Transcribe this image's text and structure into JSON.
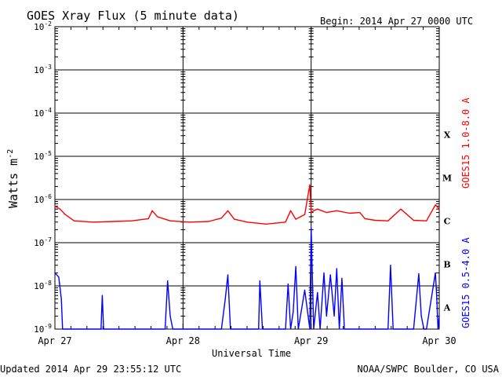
{
  "header": {
    "title": "GOES Xray Flux (5 minute data)",
    "begin": "Begin:  2014 Apr 27 0000 UTC"
  },
  "footer": {
    "updated": "Updated 2014 Apr 29 23:55:12 UTC",
    "credit": "NOAA/SWPC Boulder, CO USA"
  },
  "chart_data": {
    "type": "line",
    "title": "GOES Xray Flux (5 minute data)",
    "xlabel": "Universal Time",
    "ylabel": "Watts m",
    "ylabel_sup": "-2",
    "y_scale": "log",
    "ylim": [
      1e-09,
      0.01
    ],
    "xlim_days": [
      0,
      3
    ],
    "x_tick_labels": [
      "Apr 27",
      "Apr 28",
      "Apr 29",
      "Apr 30"
    ],
    "y_ticks": [
      {
        "base": "10",
        "exp": "-2"
      },
      {
        "base": "10",
        "exp": "-3"
      },
      {
        "base": "10",
        "exp": "-4"
      },
      {
        "base": "10",
        "exp": "-5"
      },
      {
        "base": "10",
        "exp": "-6"
      },
      {
        "base": "10",
        "exp": "-7"
      },
      {
        "base": "10",
        "exp": "-8"
      },
      {
        "base": "10",
        "exp": "-9"
      }
    ],
    "flare_classes": [
      "X",
      "M",
      "C",
      "B",
      "A"
    ],
    "grid": true,
    "series": [
      {
        "name": "GOES15 1.0-8.0 A",
        "color": "#ff0000",
        "x": [
          0.0,
          0.04,
          0.08,
          0.15,
          0.3,
          0.45,
          0.6,
          0.73,
          0.76,
          0.8,
          0.9,
          1.05,
          1.2,
          1.3,
          1.35,
          1.4,
          1.5,
          1.65,
          1.8,
          1.84,
          1.88,
          1.95,
          1.99,
          2.0,
          2.02,
          2.05,
          2.12,
          2.2,
          2.3,
          2.38,
          2.42,
          2.5,
          2.6,
          2.7,
          2.8,
          2.9,
          2.97,
          3.0
        ],
        "values": [
          7e-07,
          6e-07,
          4.5e-07,
          3.2e-07,
          3e-07,
          3.1e-07,
          3.2e-07,
          3.6e-07,
          5.5e-07,
          4e-07,
          3.2e-07,
          3e-07,
          3.1e-07,
          3.7e-07,
          5.5e-07,
          3.5e-07,
          3e-07,
          2.7e-07,
          3e-07,
          5.5e-07,
          3.5e-07,
          4.5e-07,
          2.2e-06,
          5e-07,
          5.5e-07,
          6e-07,
          5e-07,
          5.5e-07,
          4.8e-07,
          5e-07,
          3.6e-07,
          3.3e-07,
          3.2e-07,
          6e-07,
          3.3e-07,
          3.2e-07,
          7.5e-07,
          6e-07
        ]
      },
      {
        "name": "GOES15 0.5-4.0 A",
        "color": "#0000ff",
        "x": [
          0.0,
          0.03,
          0.05,
          0.06,
          0.08,
          0.1,
          0.2,
          0.36,
          0.37,
          0.38,
          0.5,
          0.86,
          0.88,
          0.9,
          0.92,
          1.0,
          1.05,
          1.1,
          1.3,
          1.33,
          1.35,
          1.37,
          1.5,
          1.59,
          1.6,
          1.62,
          1.7,
          1.75,
          1.8,
          1.82,
          1.84,
          1.86,
          1.88,
          1.9,
          1.95,
          1.99,
          2.0,
          2.02,
          2.05,
          2.07,
          2.1,
          2.12,
          2.15,
          2.18,
          2.2,
          2.22,
          2.24,
          2.26,
          2.3,
          2.4,
          2.6,
          2.62,
          2.64,
          2.7,
          2.8,
          2.84,
          2.86,
          2.88,
          2.9,
          2.97,
          2.98,
          2.99,
          3.0
        ],
        "values": [
          2e-08,
          1.6e-08,
          5e-09,
          1e-09,
          1e-09,
          1e-09,
          1e-09,
          1e-09,
          6e-09,
          1e-09,
          1e-09,
          1e-09,
          1.3e-08,
          2e-09,
          1e-09,
          1e-09,
          1e-09,
          1e-09,
          1e-09,
          5e-09,
          1.8e-08,
          1e-09,
          1e-09,
          1e-09,
          1.3e-08,
          1e-09,
          1e-09,
          1e-09,
          1e-09,
          1.1e-08,
          1e-09,
          2.5e-09,
          2.8e-08,
          1e-09,
          8e-09,
          1e-09,
          2.2e-07,
          1e-09,
          7e-09,
          1e-09,
          2e-08,
          2e-09,
          1.8e-08,
          2e-09,
          2.5e-08,
          1e-09,
          1.5e-08,
          1e-09,
          1e-09,
          1e-09,
          1e-09,
          3e-08,
          1e-09,
          1e-09,
          1e-09,
          1.9e-08,
          2e-09,
          1e-09,
          1e-09,
          2e-08,
          6e-09,
          1e-09,
          2e-09
        ]
      }
    ]
  }
}
